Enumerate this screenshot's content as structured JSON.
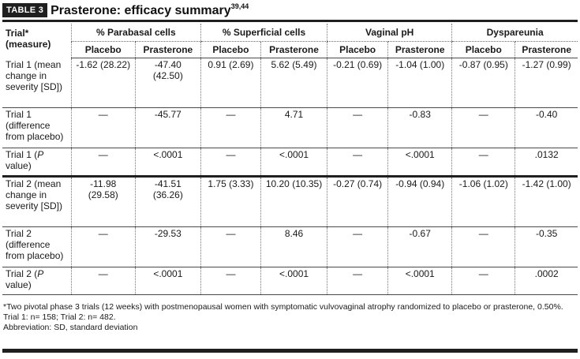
{
  "table_tag": "TABLE 3",
  "title": "Prasterone: efficacy summary",
  "title_refs": "39,44",
  "header": {
    "row_label_line1": "Trial*",
    "row_label_line2": "(measure)",
    "groups": [
      "% Parabasal cells",
      "% Superficial cells",
      "Vaginal pH",
      "Dyspareunia"
    ],
    "subcols": [
      "Placebo",
      "Prasterone",
      "Placebo",
      "Prasterone",
      "Placebo",
      "Prasterone",
      "Placebo",
      "Prasterone"
    ]
  },
  "rows": [
    {
      "label": "Trial 1 (mean change in severity [SD])",
      "cells": [
        "-1.62 (28.22)",
        "-47.40 (42.50)",
        "0.91 (2.69)",
        "5.62 (5.49)",
        "-0.21 (0.69)",
        "-1.04 (1.00)",
        "-0.87 (0.95)",
        "-1.27 (0.99)"
      ]
    },
    {
      "label": "Trial 1 (difference from placebo)",
      "cells": [
        "—",
        "-45.77",
        "—",
        "4.71",
        "—",
        "-0.83",
        "—",
        "-0.40"
      ]
    },
    {
      "label_prefix": "Trial 1 (",
      "label_italic": "P",
      "label_suffix": " value)",
      "cells": [
        "—",
        "<.0001",
        "—",
        "<.0001",
        "—",
        "<.0001",
        "—",
        ".0132"
      ]
    },
    {
      "label": "Trial 2 (mean change in severity [SD])",
      "cells": [
        "-11.98 (29.58)",
        "-41.51 (36.26)",
        "1.75 (3.33)",
        "10.20 (10.35)",
        "-0.27 (0.74)",
        "-0.94 (0.94)",
        "-1.06 (1.02)",
        "-1.42 (1.00)"
      ]
    },
    {
      "label": "Trial 2 (difference from placebo)",
      "cells": [
        "—",
        "-29.53",
        "—",
        "8.46",
        "—",
        "-0.67",
        "—",
        "-0.35"
      ]
    },
    {
      "label_prefix": "Trial 2 (",
      "label_italic": "P",
      "label_suffix": " value)",
      "cells": [
        "—",
        "<.0001",
        "—",
        "<.0001",
        "—",
        "<.0001",
        "—",
        ".0002"
      ]
    }
  ],
  "footnote": "*Two pivotal phase 3 trials (12 weeks) with postmenopausal women with symptomatic vulvovaginal atrophy randomized to placebo or prasterone, 0.50%. Trial 1: n= 158; Trial 2: n= 482.",
  "abbreviation": "Abbreviation: SD, standard deviation"
}
